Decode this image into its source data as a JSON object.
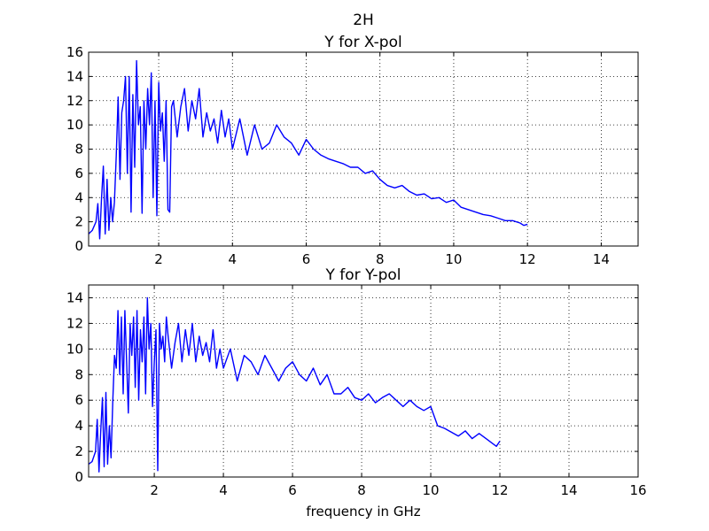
{
  "figure": {
    "suptitle": "2H"
  },
  "colors": {
    "line": "#0000ff",
    "grid": "#000000",
    "background": "#ffffff"
  },
  "chart_data": [
    {
      "type": "line",
      "title": "Y for X-pol",
      "xlabel": "",
      "ylabel": "",
      "xlim": [
        0.1,
        15
      ],
      "ylim": [
        0,
        16
      ],
      "xticks": [
        2,
        4,
        6,
        8,
        10,
        12,
        14
      ],
      "yticks": [
        0,
        2,
        4,
        6,
        8,
        10,
        12,
        14,
        16
      ],
      "grid": true,
      "series": [
        {
          "x": [
            0.1,
            0.2,
            0.3,
            0.35,
            0.4,
            0.45,
            0.5,
            0.55,
            0.6,
            0.65,
            0.7,
            0.75,
            0.8,
            0.85,
            0.9,
            0.95,
            1.0,
            1.05,
            1.1,
            1.15,
            1.2,
            1.25,
            1.3,
            1.35,
            1.4,
            1.45,
            1.5,
            1.55,
            1.6,
            1.65,
            1.7,
            1.75,
            1.8,
            1.85,
            1.9,
            1.95,
            2.0,
            2.05,
            2.1,
            2.15,
            2.2,
            2.25,
            2.3,
            2.35,
            2.4,
            2.5,
            2.6,
            2.7,
            2.8,
            2.9,
            3.0,
            3.1,
            3.2,
            3.3,
            3.4,
            3.5,
            3.6,
            3.7,
            3.8,
            3.9,
            4.0,
            4.2,
            4.4,
            4.6,
            4.8,
            5.0,
            5.2,
            5.4,
            5.6,
            5.8,
            6.0,
            6.2,
            6.4,
            6.6,
            6.8,
            7.0,
            7.2,
            7.4,
            7.6,
            7.8,
            8.0,
            8.2,
            8.4,
            8.6,
            8.8,
            9.0,
            9.2,
            9.4,
            9.6,
            9.8,
            10.0,
            10.2,
            10.4,
            10.6,
            10.8,
            11.0,
            11.2,
            11.4,
            11.6,
            11.8,
            11.9,
            12.0
          ],
          "y": [
            1.0,
            1.3,
            2.0,
            3.5,
            0.6,
            4.0,
            6.6,
            1.0,
            5.5,
            1.3,
            4.0,
            2.0,
            3.6,
            7.5,
            12.3,
            5.5,
            11.0,
            12.0,
            14.0,
            6.0,
            14.0,
            2.8,
            12.5,
            6.5,
            15.3,
            10.0,
            11.5,
            2.7,
            12.0,
            8.0,
            13.0,
            10.0,
            14.3,
            4.0,
            12.0,
            2.5,
            13.5,
            9.5,
            11.0,
            7.0,
            12.0,
            3.0,
            2.8,
            11.5,
            12.0,
            9.0,
            11.5,
            13.0,
            9.5,
            12.0,
            10.5,
            13.0,
            9.0,
            11.0,
            9.5,
            10.5,
            8.5,
            11.2,
            9.0,
            10.5,
            8.0,
            10.5,
            7.5,
            10.0,
            8.0,
            8.5,
            10.0,
            9.0,
            8.5,
            7.5,
            8.8,
            8.0,
            7.5,
            7.2,
            7.0,
            6.8,
            6.5,
            6.5,
            6.0,
            6.2,
            5.5,
            5.0,
            4.8,
            5.0,
            4.5,
            4.2,
            4.3,
            3.9,
            4.0,
            3.6,
            3.8,
            3.2,
            3.0,
            2.8,
            2.6,
            2.5,
            2.3,
            2.1,
            2.1,
            1.9,
            1.7,
            1.8
          ]
        }
      ]
    },
    {
      "type": "line",
      "title": "Y for Y-pol",
      "xlabel": "frequency in GHz",
      "ylabel": "",
      "xlim": [
        0.1,
        16
      ],
      "ylim": [
        0,
        15
      ],
      "xticks": [
        2,
        4,
        6,
        8,
        10,
        12,
        14,
        16
      ],
      "yticks": [
        0,
        2,
        4,
        6,
        8,
        10,
        12,
        14
      ],
      "grid": true,
      "series": [
        {
          "x": [
            0.1,
            0.2,
            0.3,
            0.35,
            0.4,
            0.45,
            0.5,
            0.55,
            0.6,
            0.65,
            0.7,
            0.75,
            0.8,
            0.85,
            0.9,
            0.95,
            1.0,
            1.05,
            1.1,
            1.15,
            1.2,
            1.25,
            1.3,
            1.35,
            1.4,
            1.45,
            1.5,
            1.55,
            1.6,
            1.65,
            1.7,
            1.75,
            1.8,
            1.85,
            1.9,
            1.95,
            2.0,
            2.05,
            2.1,
            2.15,
            2.2,
            2.25,
            2.3,
            2.35,
            2.4,
            2.5,
            2.6,
            2.7,
            2.8,
            2.9,
            3.0,
            3.1,
            3.2,
            3.3,
            3.4,
            3.5,
            3.6,
            3.7,
            3.8,
            3.9,
            4.0,
            4.2,
            4.4,
            4.6,
            4.8,
            5.0,
            5.2,
            5.4,
            5.6,
            5.8,
            6.0,
            6.2,
            6.4,
            6.6,
            6.8,
            7.0,
            7.2,
            7.4,
            7.6,
            7.8,
            8.0,
            8.2,
            8.4,
            8.6,
            8.8,
            9.0,
            9.2,
            9.4,
            9.6,
            9.8,
            10.0,
            10.2,
            10.4,
            10.6,
            10.8,
            11.0,
            11.2,
            11.4,
            11.6,
            11.8,
            11.9,
            12.0
          ],
          "y": [
            1.0,
            1.2,
            2.0,
            4.5,
            0.4,
            3.5,
            6.2,
            0.8,
            6.6,
            1.0,
            4.0,
            1.5,
            6.0,
            9.5,
            8.5,
            13.0,
            8.0,
            12.5,
            6.5,
            13.0,
            9.0,
            5.0,
            12.0,
            9.5,
            12.5,
            7.0,
            13.0,
            6.0,
            11.5,
            9.0,
            12.5,
            6.5,
            14.0,
            10.0,
            12.0,
            5.5,
            9.0,
            11.5,
            0.5,
            12.0,
            10.0,
            11.0,
            9.0,
            12.5,
            11.0,
            8.5,
            10.5,
            12.0,
            9.0,
            11.5,
            9.5,
            12.0,
            9.0,
            11.0,
            9.5,
            10.5,
            9.0,
            11.5,
            8.5,
            10.0,
            8.5,
            10.0,
            7.5,
            9.5,
            9.0,
            8.0,
            9.5,
            8.5,
            7.5,
            8.5,
            9.0,
            8.0,
            7.5,
            8.5,
            7.2,
            8.0,
            6.5,
            6.5,
            7.0,
            6.2,
            6.0,
            6.5,
            5.8,
            6.2,
            6.5,
            6.0,
            5.5,
            6.0,
            5.5,
            5.2,
            5.5,
            4.0,
            3.8,
            3.5,
            3.2,
            3.6,
            3.0,
            3.4,
            3.0,
            2.6,
            2.4,
            2.8
          ]
        }
      ]
    }
  ]
}
